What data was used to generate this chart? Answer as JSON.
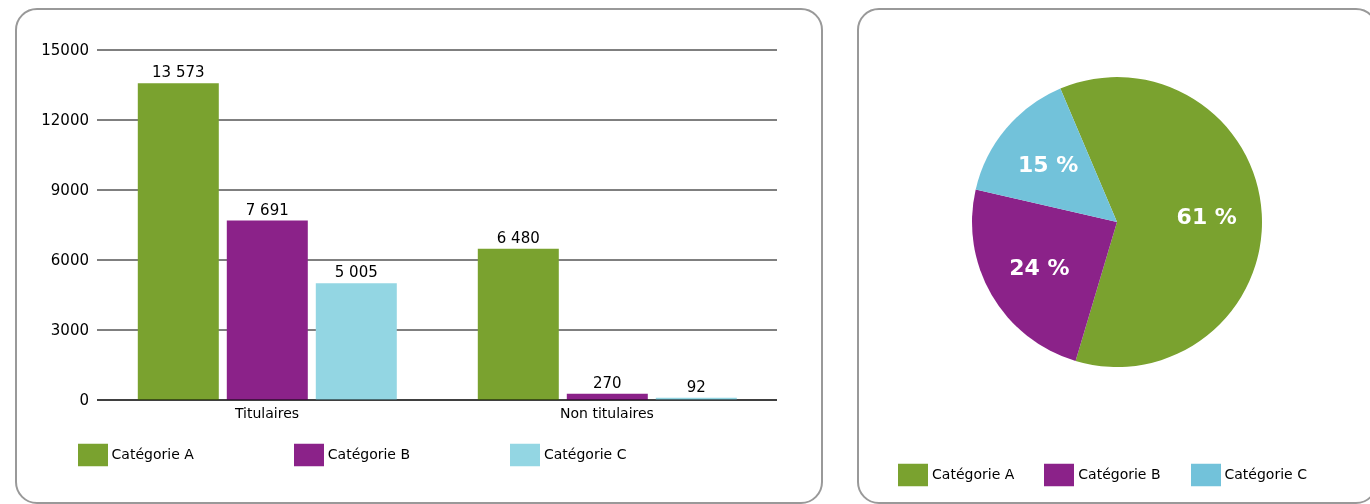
{
  "chart_data": [
    {
      "type": "bar",
      "categories": [
        "Titulaires",
        "Non titulaires"
      ],
      "series": [
        {
          "name": "Catégorie A",
          "color": "#7aa22f",
          "values": [
            13573,
            6480
          ],
          "value_labels": [
            "13 573",
            "6 480"
          ]
        },
        {
          "name": "Catégorie B",
          "color": "#8b2289",
          "values": [
            7691,
            270
          ],
          "value_labels": [
            "7 691",
            "270"
          ]
        },
        {
          "name": "Catégorie C",
          "color": "#93d6e3",
          "values": [
            5005,
            92
          ],
          "value_labels": [
            "5 005",
            "92"
          ]
        }
      ],
      "ylim": [
        0,
        15000
      ],
      "yticks": [
        0,
        3000,
        6000,
        9000,
        12000,
        15000
      ],
      "grid": "y",
      "legend": "bottom"
    },
    {
      "type": "pie",
      "categories": [
        "Catégorie A",
        "Catégorie B",
        "Catégorie C"
      ],
      "values": [
        61,
        24,
        15
      ],
      "value_labels": [
        "61 %",
        "24 %",
        "15 %"
      ],
      "colors": [
        "#7aa22f",
        "#8b2289",
        "#72c2da"
      ],
      "legend": "bottom"
    }
  ]
}
